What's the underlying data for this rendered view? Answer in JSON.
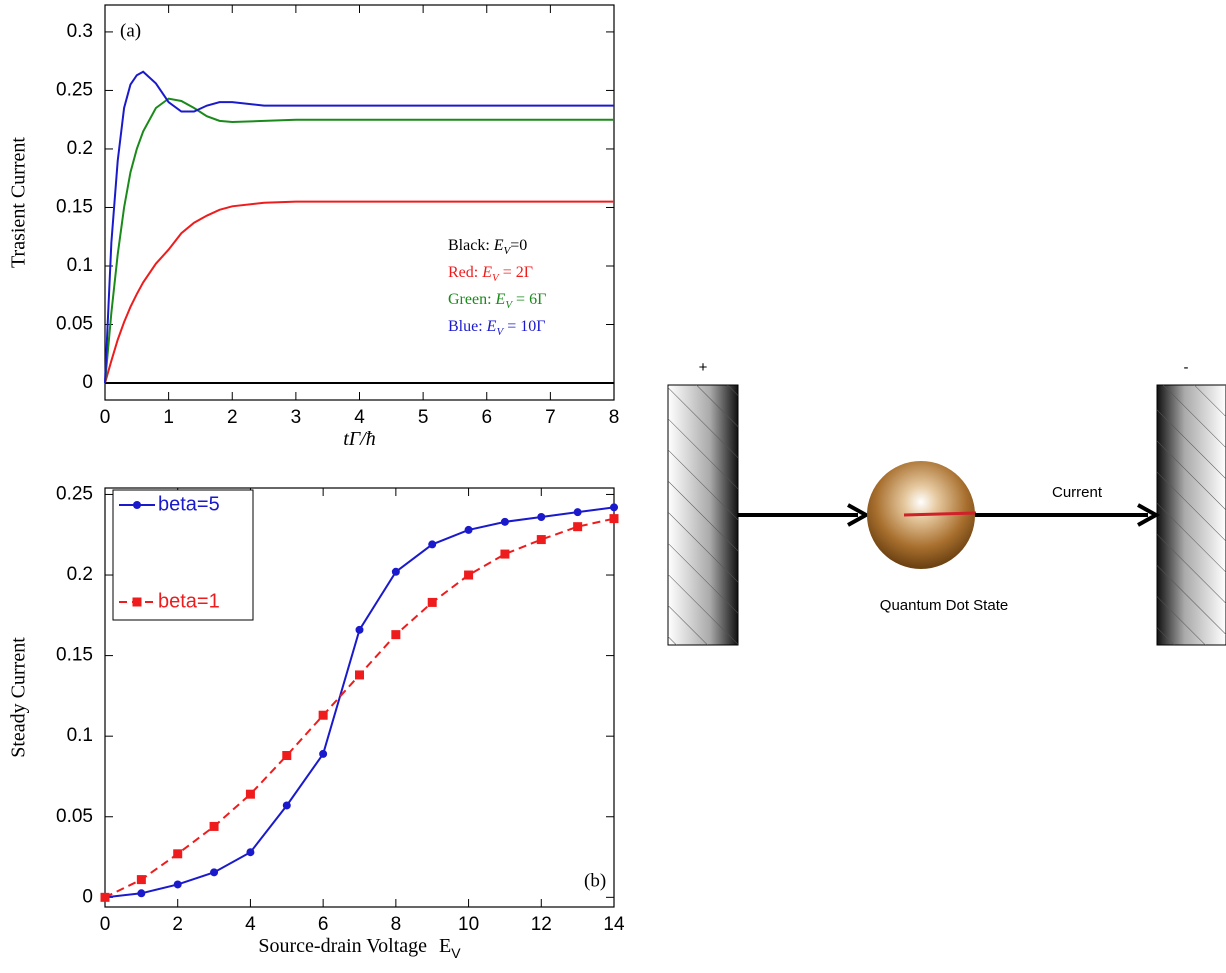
{
  "chart_data": [
    {
      "type": "line",
      "panel_label": "(a)",
      "xlabel": "tΓ/ħ",
      "ylabel": "Trasient Current",
      "xlim": [
        0,
        8
      ],
      "ylim": [
        -0.0145,
        0.323
      ],
      "xticks": [
        0,
        1,
        2,
        3,
        4,
        5,
        6,
        7,
        8
      ],
      "yticks": [
        0,
        0.05,
        0.1,
        0.15,
        0.2,
        0.25,
        0.3
      ],
      "legend": "center right",
      "x": [
        0,
        0.1,
        0.2,
        0.3,
        0.4,
        0.5,
        0.6,
        0.8,
        1.0,
        1.2,
        1.4,
        1.6,
        1.8,
        2.0,
        2.5,
        3,
        4,
        5,
        6,
        7,
        8
      ],
      "series": [
        {
          "name": "Black:",
          "symbol": "E",
          "sub": "V",
          "rest": "=0",
          "color": "#000000",
          "values": [
            0,
            0,
            0,
            0,
            0,
            0,
            0,
            0,
            0,
            0,
            0,
            0,
            0,
            0,
            0,
            0,
            0,
            0,
            0,
            0,
            0
          ]
        },
        {
          "name": "Red:",
          "symbol": "E",
          "sub": "V",
          "rest": " = 2Γ",
          "color": "#ee1c1c",
          "values": [
            0,
            0.019,
            0.037,
            0.052,
            0.065,
            0.076,
            0.086,
            0.102,
            0.114,
            0.128,
            0.137,
            0.143,
            0.148,
            0.151,
            0.154,
            0.155,
            0.155,
            0.155,
            0.155,
            0.155,
            0.155
          ]
        },
        {
          "name": "Green:",
          "symbol": "E",
          "sub": "V",
          "rest": " = 6Γ",
          "color": "#1a8a1a",
          "values": [
            0,
            0.06,
            0.11,
            0.15,
            0.18,
            0.2,
            0.215,
            0.235,
            0.243,
            0.241,
            0.235,
            0.228,
            0.224,
            0.223,
            0.224,
            0.225,
            0.225,
            0.225,
            0.225,
            0.225,
            0.225
          ]
        },
        {
          "name": "Blue:",
          "symbol": "E",
          "sub": "V",
          "rest": " = 10Γ",
          "color": "#1a1acc",
          "values": [
            0,
            0.12,
            0.19,
            0.235,
            0.255,
            0.263,
            0.266,
            0.256,
            0.24,
            0.232,
            0.232,
            0.237,
            0.24,
            0.24,
            0.237,
            0.237,
            0.237,
            0.237,
            0.237,
            0.237,
            0.237
          ]
        }
      ]
    },
    {
      "type": "line",
      "panel_label": "(b)",
      "xlabel": "Source-drain Voltage",
      "xlabel_symbol": "E",
      "xlabel_sub": "V",
      "ylabel": "Steady Current",
      "xlim": [
        0,
        14
      ],
      "ylim": [
        -0.006,
        0.254
      ],
      "xticks": [
        0,
        2,
        4,
        6,
        8,
        10,
        12,
        14
      ],
      "yticks": [
        0,
        0.05,
        0.1,
        0.15,
        0.2,
        0.25
      ],
      "legend": "upper left",
      "x": [
        0,
        1,
        2,
        3,
        4,
        5,
        6,
        7,
        8,
        9,
        10,
        11,
        12,
        13,
        14
      ],
      "series": [
        {
          "name": "beta=5",
          "color": "#1a1acc",
          "marker": "circle",
          "linestyle": "solid",
          "values": [
            0,
            0.0025,
            0.008,
            0.0155,
            0.028,
            0.057,
            0.089,
            0.166,
            0.202,
            0.219,
            0.228,
            0.233,
            0.236,
            0.239,
            0.242
          ]
        },
        {
          "name": "beta=1",
          "color": "#ee1c1c",
          "marker": "square",
          "linestyle": "dashed",
          "values": [
            0,
            0.011,
            0.027,
            0.044,
            0.064,
            0.088,
            0.113,
            0.138,
            0.163,
            0.183,
            0.2,
            0.213,
            0.222,
            0.23,
            0.235
          ]
        }
      ]
    }
  ],
  "diagram": {
    "left_terminal": "+",
    "right_terminal": "-",
    "arrow_label": "Current",
    "dot_label": "Quantum Dot State"
  }
}
